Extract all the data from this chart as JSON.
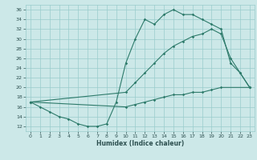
{
  "bg_color": "#cce8e8",
  "grid_color": "#99cccc",
  "line_color": "#2d7a6a",
  "xlabel": "Humidex (Indice chaleur)",
  "xlim": [
    -0.5,
    23.5
  ],
  "ylim": [
    11,
    37
  ],
  "xticks": [
    0,
    1,
    2,
    3,
    4,
    5,
    6,
    7,
    8,
    9,
    10,
    11,
    12,
    13,
    14,
    15,
    16,
    17,
    18,
    19,
    20,
    21,
    22,
    23
  ],
  "yticks": [
    12,
    14,
    16,
    18,
    20,
    22,
    24,
    26,
    28,
    30,
    32,
    34,
    36
  ],
  "curve_top_x": [
    0,
    1,
    2,
    3,
    4,
    5,
    6,
    7,
    8,
    9,
    10,
    11,
    12,
    13,
    14,
    15,
    16,
    17,
    18,
    19,
    20,
    21,
    22,
    23
  ],
  "curve_top_y": [
    17,
    16,
    15,
    14,
    13.5,
    12.5,
    12,
    12,
    12.5,
    17,
    25,
    30,
    34,
    33,
    35,
    36,
    35,
    35,
    34,
    33,
    32,
    25,
    23,
    20
  ],
  "curve_mid_x": [
    0,
    10,
    11,
    12,
    13,
    14,
    15,
    16,
    17,
    18,
    19,
    20,
    21,
    22,
    23
  ],
  "curve_mid_y": [
    17,
    19,
    21,
    23,
    25,
    27,
    28.5,
    29.5,
    30.5,
    31,
    32,
    31,
    26,
    23,
    20
  ],
  "curve_bot_x": [
    0,
    10,
    11,
    12,
    13,
    14,
    15,
    16,
    17,
    18,
    19,
    20,
    23
  ],
  "curve_bot_y": [
    17,
    16,
    16.5,
    17,
    17.5,
    18,
    18.5,
    18.5,
    19,
    19,
    19.5,
    20,
    20
  ]
}
